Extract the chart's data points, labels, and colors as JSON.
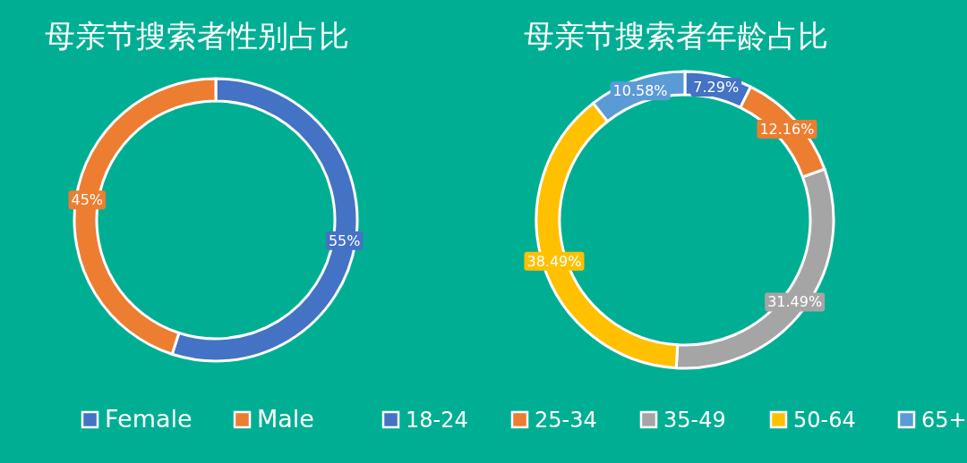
{
  "chart_data": [
    {
      "type": "donut",
      "title": "母亲节搜索者性别占比",
      "categories": [
        "Female",
        "Male"
      ],
      "values": [
        55,
        45
      ],
      "value_labels": [
        "55%",
        "45%"
      ],
      "colors": [
        "#4472c4",
        "#ed7d31"
      ],
      "legend": "bottom"
    },
    {
      "type": "donut",
      "title": "母亲节搜索者年龄占比",
      "categories": [
        "18-24",
        "25-34",
        "35-49",
        "50-64",
        "65+"
      ],
      "values": [
        7.29,
        12.16,
        31.49,
        38.49,
        10.58
      ],
      "value_labels": [
        "7.29%",
        "12.16%",
        "31.49%",
        "38.49%",
        "10.58%"
      ],
      "colors": [
        "#4472c4",
        "#ed7d31",
        "#a5a5a5",
        "#ffc000",
        "#5b9bd5"
      ],
      "legend": "bottom"
    }
  ]
}
